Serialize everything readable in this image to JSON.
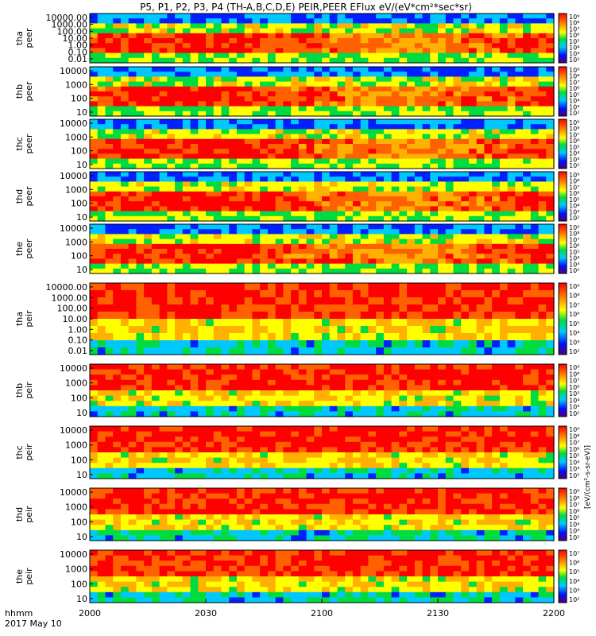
{
  "chart_data": {
    "type": "heatmap",
    "title": "P5, P1, P2, P3, P4 (TH-A,B,C,D,E) PEIR,PEER EFlux eV/(eV*cm²*sec*sr)",
    "x_axis": {
      "start_label": "hhmm",
      "date_label": "2017 May 10",
      "ticks": [
        "2000",
        "2030",
        "2100",
        "2130",
        "2200"
      ]
    },
    "colorbar_label": "[eV/(cm²-s-sr-eV)]",
    "panels": [
      {
        "probe": "tha",
        "type": "peer",
        "yticks": [
          "10000.00",
          "1000.00",
          "100.00",
          "10.00",
          "1.00",
          "0.10",
          "0.01"
        ],
        "cbar_ticks": [
          "10⁹",
          "10⁸",
          "10⁷",
          "10⁶",
          "10⁵",
          "10⁴",
          "10³",
          "10²"
        ]
      },
      {
        "probe": "thb",
        "type": "peer",
        "yticks": [
          "10000",
          "1000",
          "100",
          "10"
        ],
        "cbar_ticks": [
          "10⁹",
          "10⁸",
          "10⁷",
          "10⁶",
          "10⁵",
          "10⁴",
          "10³",
          "10²"
        ]
      },
      {
        "probe": "thc",
        "type": "peer",
        "yticks": [
          "10000",
          "1000",
          "100",
          "10"
        ],
        "cbar_ticks": [
          "10⁹",
          "10⁸",
          "10⁷",
          "10⁶",
          "10⁵",
          "10⁴",
          "10³",
          "10²"
        ]
      },
      {
        "probe": "thd",
        "type": "peer",
        "yticks": [
          "10000",
          "1000",
          "100",
          "10"
        ],
        "cbar_ticks": [
          "10⁹",
          "10⁸",
          "10⁷",
          "10⁶",
          "10⁵",
          "10⁴",
          "10³",
          "10²"
        ]
      },
      {
        "probe": "the",
        "type": "peer",
        "yticks": [
          "10000",
          "1000",
          "100",
          "10"
        ],
        "cbar_ticks": [
          "10⁹",
          "10⁸",
          "10⁷",
          "10⁶",
          "10⁵",
          "10⁴",
          "10³",
          "10²"
        ]
      },
      {
        "probe": "tha",
        "type": "peir",
        "yticks": [
          "10000.00",
          "1000.00",
          "100.00",
          "10.00",
          "1.00",
          "0.10",
          "0.01"
        ],
        "cbar_ticks": [
          "10⁹",
          "10⁸",
          "10⁷",
          "10⁶",
          "10⁵",
          "10⁴",
          "10³",
          "10²"
        ]
      },
      {
        "probe": "thb",
        "type": "peir",
        "yticks": [
          "10000",
          "1000",
          "100",
          "10"
        ],
        "cbar_ticks": [
          "10⁹",
          "10⁸",
          "10⁷",
          "10⁶",
          "10⁵",
          "10⁴",
          "10³",
          "10²"
        ]
      },
      {
        "probe": "thc",
        "type": "peir",
        "yticks": [
          "10000",
          "1000",
          "100",
          "10"
        ],
        "cbar_ticks": [
          "10⁹",
          "10⁸",
          "10⁷",
          "10⁶",
          "10⁵",
          "10⁴",
          "10³",
          "10²"
        ]
      },
      {
        "probe": "thd",
        "type": "peir",
        "yticks": [
          "10000",
          "1000",
          "100",
          "10"
        ],
        "cbar_ticks": [
          "10⁹",
          "10⁸",
          "10⁷",
          "10⁶",
          "10⁵",
          "10⁴",
          "10³",
          "10²"
        ]
      },
      {
        "probe": "the",
        "type": "peir",
        "yticks": [
          "10000",
          "1000",
          "100",
          "10"
        ],
        "cbar_ticks": [
          "10⁷",
          "10⁶",
          "10⁵",
          "10⁴",
          "10³",
          "10²"
        ]
      }
    ]
  }
}
